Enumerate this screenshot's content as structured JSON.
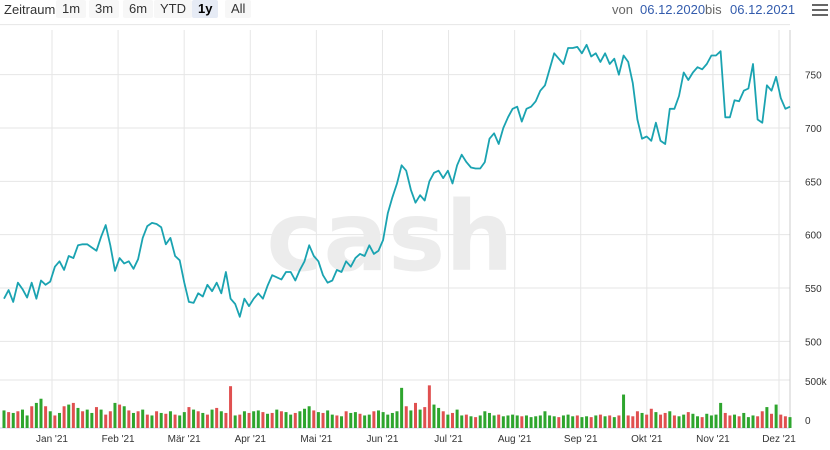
{
  "toolbar": {
    "zoom_label": "Zeitraum",
    "zoom_buttons": [
      "1m",
      "3m",
      "6m",
      "YTD",
      "1y",
      "All"
    ],
    "active_button": "1y",
    "from_label": "von",
    "from_value": "06.12.2020",
    "to_label": "bis",
    "to_value": "06.12.2021",
    "menu_icon": "hamburger-menu-icon"
  },
  "watermark": "cash",
  "colors": {
    "price_line": "#1aa3b1",
    "volume_up": "#2ea52e",
    "volume_down": "#e05050",
    "grid": "#e6e6e6"
  },
  "chart_data": {
    "type": "line",
    "title": "",
    "xlabel": "",
    "ylabel": "",
    "x_ticks": [
      "Jan '21",
      "Feb '21",
      "Mär '21",
      "Apr '21",
      "Mai '21",
      "Jun '21",
      "Jul '21",
      "Aug '21",
      "Sep '21",
      "Okt '21",
      "Nov '21",
      "Dez '21"
    ],
    "y_ticks": [
      500,
      550,
      600,
      650,
      700,
      750
    ],
    "ylim": [
      475,
      790
    ],
    "volume_ticks": [
      "0",
      "500k"
    ],
    "grid": true,
    "series": [
      {
        "values": [
          540,
          548,
          537,
          555,
          549,
          541,
          555,
          540,
          557,
          553,
          556,
          570,
          575,
          567,
          580,
          578,
          590,
          591,
          591,
          588,
          585,
          598,
          609,
          590,
          566,
          578,
          573,
          575,
          568,
          577,
          597,
          608,
          611,
          610,
          607,
          591,
          597,
          580,
          576,
          555,
          537,
          536,
          545,
          542,
          553,
          547,
          555,
          545,
          565,
          540,
          535,
          523,
          540,
          533,
          540,
          545,
          540,
          552,
          562,
          560,
          558,
          565,
          565,
          557,
          567,
          575,
          590,
          580,
          575,
          562,
          555,
          557,
          567,
          565,
          575,
          570,
          578,
          582,
          580,
          590,
          582,
          585,
          595,
          620,
          635,
          648,
          665,
          660,
          642,
          630,
          637,
          632,
          650,
          658,
          660,
          653,
          660,
          648,
          665,
          675,
          668,
          663,
          662,
          662,
          668,
          690,
          695,
          685,
          700,
          710,
          718,
          720,
          706,
          718,
          720,
          725,
          735,
          740,
          755,
          770,
          765,
          760,
          775,
          775,
          776,
          770,
          778,
          767,
          770,
          762,
          770,
          760,
          765,
          750,
          768,
          762,
          742,
          708,
          690,
          692,
          688,
          705,
          688,
          685,
          718,
          718,
          730,
          752,
          745,
          752,
          757,
          755,
          760,
          768,
          768,
          772,
          710,
          710,
          726,
          725,
          735,
          737,
          760,
          708,
          705,
          740,
          735,
          748,
          728,
          718,
          720
        ]
      }
    ],
    "volume": {
      "values": [
        210,
        190,
        180,
        200,
        220,
        150,
        260,
        300,
        350,
        260,
        200,
        150,
        180,
        260,
        280,
        300,
        240,
        200,
        220,
        180,
        250,
        220,
        160,
        200,
        300,
        280,
        260,
        210,
        180,
        200,
        220,
        160,
        150,
        200,
        180,
        170,
        200,
        160,
        150,
        190,
        250,
        220,
        200,
        180,
        160,
        220,
        240,
        200,
        180,
        500,
        150,
        160,
        200,
        180,
        200,
        210,
        190,
        170,
        180,
        220,
        200,
        190,
        160,
        180,
        200,
        230,
        260,
        210,
        190,
        180,
        210,
        160,
        150,
        140,
        200,
        180,
        190,
        170,
        150,
        160,
        200,
        210,
        190,
        160,
        180,
        200,
        480,
        260,
        210,
        300,
        220,
        250,
        510,
        280,
        240,
        200,
        160,
        180,
        220,
        150,
        160,
        140,
        130,
        150,
        200,
        180,
        150,
        160,
        140,
        150,
        160,
        150,
        140,
        150,
        130,
        140,
        150,
        200,
        150,
        140,
        130,
        150,
        160,
        140,
        150,
        130,
        140,
        130,
        150,
        160,
        140,
        150,
        130,
        150,
        400,
        150,
        140,
        200,
        180,
        160,
        230,
        190,
        160,
        180,
        200,
        150,
        140,
        160,
        190,
        170,
        140,
        130,
        170,
        150,
        160,
        300,
        180,
        150,
        160,
        140,
        180,
        130,
        150,
        140,
        200,
        250,
        170,
        280,
        160,
        140,
        130
      ],
      "up": [
        1,
        0,
        1,
        0,
        1,
        1,
        0,
        1,
        1,
        0,
        1,
        0,
        1,
        0,
        1,
        0,
        1,
        0,
        1,
        1,
        0,
        1,
        0,
        0,
        1,
        0,
        1,
        0,
        1,
        0,
        1,
        0,
        1,
        0,
        1,
        0,
        1,
        0,
        1,
        1,
        0,
        1,
        0,
        1,
        0,
        1,
        0,
        1,
        0,
        0,
        1,
        0,
        1,
        0,
        1,
        1,
        0,
        1,
        0,
        1,
        0,
        1,
        1,
        0,
        1,
        1,
        1,
        0,
        1,
        0,
        1,
        1,
        0,
        1,
        0,
        1,
        1,
        0,
        1,
        1,
        0,
        1,
        1,
        1,
        1,
        1,
        1,
        0,
        1,
        0,
        1,
        0,
        0,
        1,
        1,
        0,
        1,
        0,
        1,
        1,
        0,
        1,
        0,
        1,
        1,
        1,
        1,
        0,
        1,
        1,
        1,
        1,
        0,
        1,
        1,
        1,
        1,
        1,
        1,
        1,
        0,
        1,
        1,
        1,
        0,
        1,
        1,
        0,
        1,
        0,
        1,
        0,
        1,
        0,
        1,
        0,
        0,
        0,
        1,
        0,
        0,
        1,
        0,
        0,
        1,
        0,
        1,
        1,
        0,
        1,
        1,
        0,
        1,
        1,
        1,
        1,
        0,
        0,
        1,
        0,
        1,
        1,
        1,
        0,
        0,
        1,
        0,
        1,
        0,
        0,
        1
      ]
    }
  }
}
